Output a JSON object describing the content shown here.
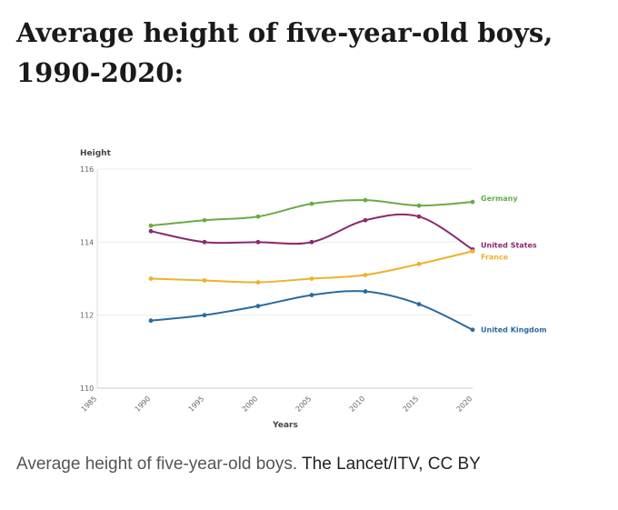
{
  "headline": "Average height of five-year-old boys, 1990-2020:",
  "caption": {
    "text": "Average height of five-year-old boys.",
    "credit": "The Lancet/ITV, CC BY"
  },
  "chart_data": {
    "type": "line",
    "title": "",
    "xlabel": "Years",
    "ylabel": "Height",
    "xlim": [
      1985,
      2020
    ],
    "ylim": [
      110,
      116
    ],
    "x_ticks": [
      "1985",
      "1990",
      "1995",
      "2000",
      "2005",
      "2010",
      "2015",
      "2020"
    ],
    "y_ticks": [
      "110",
      "112",
      "114",
      "116"
    ],
    "grid": "horizontal",
    "legend": "end-of-line labels",
    "x": [
      1990,
      1995,
      2000,
      2005,
      2010,
      2015,
      2020
    ],
    "series": [
      {
        "name": "Germany",
        "color": "#6aab45",
        "values": [
          114.45,
          114.6,
          114.7,
          115.05,
          115.15,
          115.0,
          115.1
        ]
      },
      {
        "name": "United States",
        "color": "#8a2a6e",
        "values": [
          114.3,
          114.0,
          114.0,
          114.0,
          114.6,
          114.7,
          113.8
        ]
      },
      {
        "name": "France",
        "color": "#eeb12a",
        "values": [
          113.0,
          112.95,
          112.9,
          113.0,
          113.1,
          113.4,
          113.75
        ]
      },
      {
        "name": "United Kingdom",
        "color": "#2a6aa0",
        "values": [
          111.85,
          112.0,
          112.25,
          112.55,
          112.65,
          112.3,
          111.6
        ]
      }
    ]
  }
}
